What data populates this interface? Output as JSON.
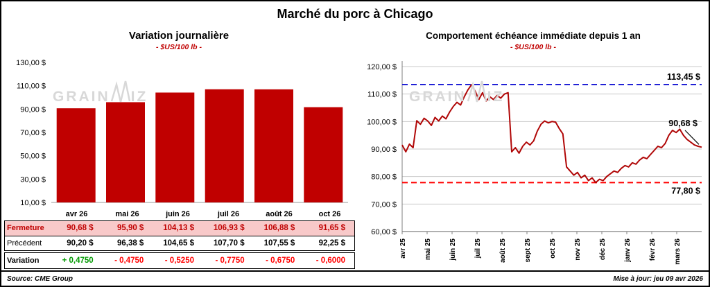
{
  "header": {
    "title": "Marché du porc à Chicago"
  },
  "watermark": {
    "part1": "GRAIN",
    "part2": "IZ",
    "full_text": "GRAINWIZ"
  },
  "left_chart": {
    "title": "Variation journalière",
    "subtitle": "- $US/100 lb -"
  },
  "right_chart": {
    "title": "Comportement échéance immédiate depuis 1 an",
    "subtitle": "- $US/100 lb -"
  },
  "table": {
    "columns": [
      "avr 26",
      "mai 26",
      "juin 26",
      "juil 26",
      "août 26",
      "oct 26"
    ],
    "rows": [
      {
        "key": "fermeture",
        "label": "Fermeture",
        "values": [
          "90,68 $",
          "95,90 $",
          "104,13 $",
          "106,93 $",
          "106,88 $",
          "91,65 $"
        ]
      },
      {
        "key": "precedent",
        "label": "Précédent",
        "values": [
          "90,20 $",
          "96,38 $",
          "104,65 $",
          "107,70 $",
          "107,55 $",
          "92,25 $"
        ]
      },
      {
        "key": "variation",
        "label": "Variation",
        "values": [
          "+ 0,4750",
          "- 0,4750",
          "- 0,5250",
          "- 0,7750",
          "- 0,6750",
          "- 0,6000"
        ],
        "signs": [
          "pos",
          "neg",
          "neg",
          "neg",
          "neg",
          "neg"
        ]
      }
    ]
  },
  "footer": {
    "source": "Source: CME Group",
    "updated": "Mise à jour: jeu 09 avr 2026"
  },
  "colors": {
    "bar": "#C00000",
    "line": "#B00606",
    "resistance_blue": "#2121D6",
    "support_red": "#FF0000",
    "close_row_bg": "#F8C9C9",
    "close_row_text": "#C00000",
    "positive": "#009900",
    "negative": "#FF0000",
    "grid": "#C9C9C9",
    "watermark": "#D8D8D8"
  },
  "chart_data": [
    {
      "type": "bar",
      "title": "Variation journalière",
      "subtitle": "- $US/100 lb -",
      "unit": "$US/100 lb",
      "categories": [
        "avr 26",
        "mai 26",
        "juin 26",
        "juil 26",
        "août 26",
        "oct 26"
      ],
      "values": [
        90.68,
        95.9,
        104.13,
        106.93,
        106.88,
        91.65
      ],
      "previous_values": [
        90.2,
        96.38,
        104.65,
        107.7,
        107.55,
        92.25
      ],
      "variations": [
        0.475,
        -0.475,
        -0.525,
        -0.775,
        -0.675,
        -0.6
      ],
      "ylim": [
        10,
        130
      ],
      "ytick_step": 20,
      "ytick_labels": [
        "10,00 $",
        "30,00 $",
        "50,00 $",
        "70,00 $",
        "90,00 $",
        "110,00 $",
        "130,00 $"
      ],
      "grid": false,
      "bar_color": "#C00000"
    },
    {
      "type": "line",
      "title": "Comportement échéance immédiate depuis 1 an",
      "subtitle": "- $US/100 lb -",
      "unit": "$US/100 lb",
      "x_tick_labels": [
        "avr 25",
        "mai 25",
        "juin 25",
        "juil 25",
        "août 25",
        "sept 25",
        "oct 25",
        "nov 25",
        "déc 25",
        "janv 26",
        "févr 26",
        "mars 26"
      ],
      "ylim": [
        60,
        120
      ],
      "ytick_step": 10,
      "ytick_labels": [
        "60,00 $",
        "70,00 $",
        "80,00 $",
        "90,00 $",
        "100,00 $",
        "110,00 $",
        "120,00 $"
      ],
      "grid": true,
      "series": [
        {
          "name": "Échéance immédiate",
          "color": "#B00606",
          "values": [
            91.5,
            89.0,
            91.8,
            90.5,
            100.3,
            99.0,
            101.2,
            100.2,
            98.6,
            101.5,
            100.2,
            102.0,
            101.0,
            103.5,
            105.5,
            107.0,
            106.0,
            109.0,
            111.5,
            113.4,
            111.0,
            108.0,
            110.5,
            107.5,
            109.0,
            108.0,
            109.5,
            108.5,
            110.0,
            110.5,
            89.0,
            90.5,
            88.5,
            91.0,
            92.5,
            91.5,
            93.0,
            96.5,
            99.0,
            100.2,
            99.5,
            100.0,
            99.8,
            97.5,
            95.5,
            83.5,
            82.0,
            80.5,
            81.5,
            79.5,
            80.5,
            78.5,
            79.5,
            77.8,
            79.0,
            78.5,
            80.0,
            81.0,
            82.0,
            81.5,
            83.0,
            84.0,
            83.5,
            85.0,
            84.5,
            86.0,
            87.0,
            86.5,
            88.0,
            89.5,
            91.0,
            90.5,
            92.0,
            95.0,
            96.8,
            96.0,
            97.2,
            95.0,
            93.5,
            92.5,
            91.5,
            91.0,
            90.68
          ]
        }
      ],
      "reference_lines": [
        {
          "value": 113.45,
          "label": "113,45 $",
          "color": "#2121D6",
          "style": "dashed",
          "label_position": "above"
        },
        {
          "value": 77.8,
          "label": "77,80 $",
          "color": "#FF0000",
          "style": "dashed",
          "label_position": "below"
        }
      ],
      "last_point_label": {
        "value": 90.68,
        "label": "90,68 $"
      }
    }
  ]
}
